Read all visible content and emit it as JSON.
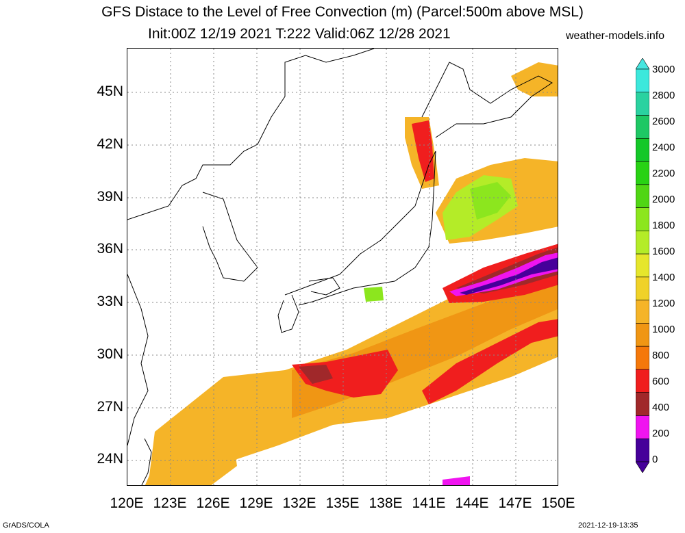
{
  "header": {
    "title": "GFS Distace to the Level of Free Convection (m) (Parcel:500m above MSL)",
    "subtitle": "Init:00Z 12/19 2021 T:222 Valid:06Z 12/28 2021",
    "site": "weather-models.info"
  },
  "map": {
    "lat_labels": [
      "45N",
      "42N",
      "39N",
      "36N",
      "33N",
      "30N",
      "27N",
      "24N"
    ],
    "lon_labels": [
      "120E",
      "123E",
      "126E",
      "129E",
      "132E",
      "135E",
      "138E",
      "141E",
      "144E",
      "147E",
      "150E"
    ],
    "lon_range": [
      120,
      150
    ],
    "lat_range": [
      22.5,
      47.5
    ],
    "grid": "dotted"
  },
  "colorbar": {
    "labels": [
      "3000",
      "2800",
      "2600",
      "2400",
      "2200",
      "2000",
      "1800",
      "1600",
      "1400",
      "1200",
      "1000",
      "800",
      "600",
      "400",
      "200",
      "0"
    ],
    "colors": [
      "#3ce8dc",
      "#2ad2a0",
      "#1ec864",
      "#14c828",
      "#28d214",
      "#50d614",
      "#8ce61e",
      "#b4ec28",
      "#e6e62c",
      "#f0d228",
      "#f5b428",
      "#f09614",
      "#f5780a",
      "#f01e1e",
      "#a0282a",
      "#f014f0",
      "#46009a"
    ],
    "top_arrow": "#46e6e0",
    "bottom_arrow": "#46009a"
  },
  "footer": {
    "left": "GrADS/COLA",
    "right": "2021-12-19-13:35"
  }
}
